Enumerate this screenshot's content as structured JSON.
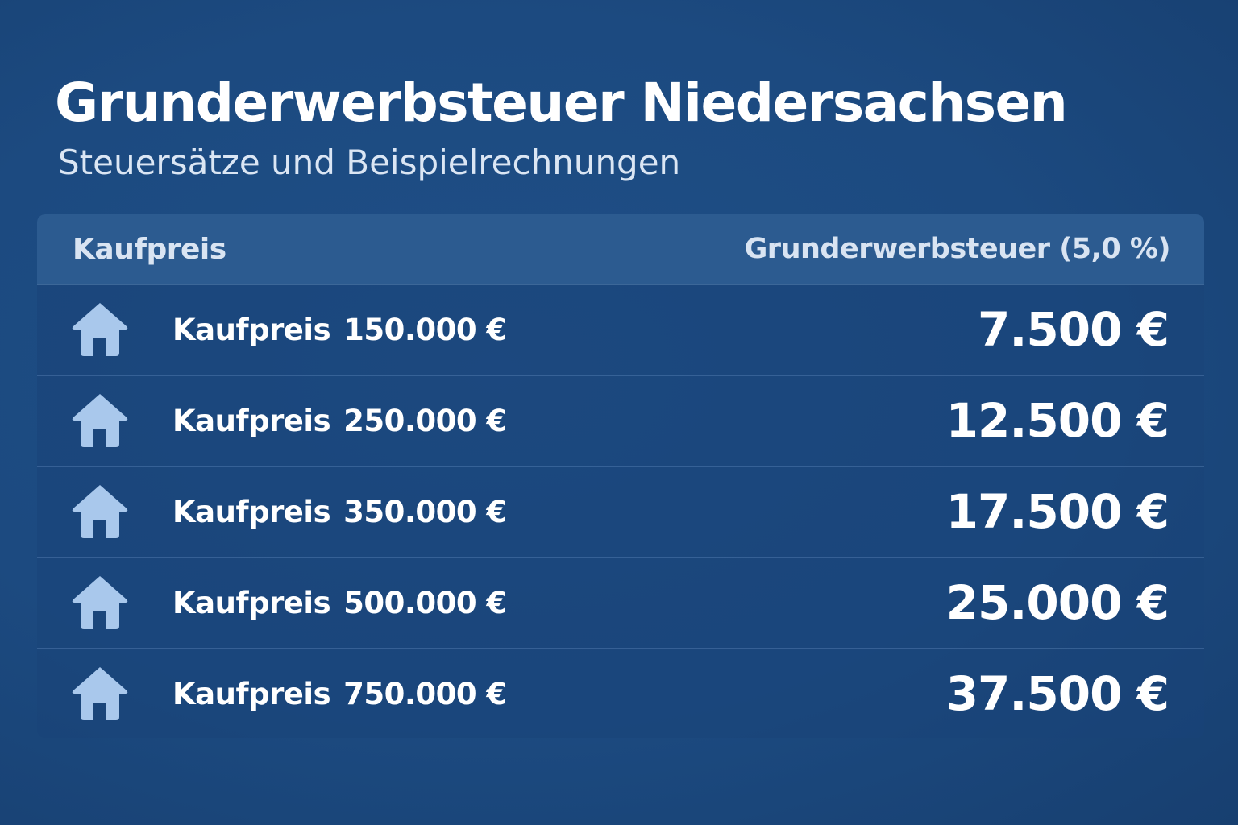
{
  "title": "Grunderwerbsteuer Niedersachsen",
  "subtitle": "Steuersätze und Beispielrechnungen",
  "table": {
    "header_left": "Kaufpreis",
    "header_right": "Grunderwerbsteuer (5,0 %)",
    "rows": [
      {
        "icon": "house-icon",
        "label": "Kaufpreis",
        "price": "150.000 €",
        "tax": "7.500 €"
      },
      {
        "icon": "house-icon",
        "label": "Kaufpreis",
        "price": "250.000 €",
        "tax": "12.500 €"
      },
      {
        "icon": "house-icon",
        "label": "Kaufpreis",
        "price": "350.000 €",
        "tax": "17.500 €"
      },
      {
        "icon": "house-icon",
        "label": "Kaufpreis",
        "price": "500.000 €",
        "tax": "25.000 €"
      },
      {
        "icon": "house-icon",
        "label": "Kaufpreis",
        "price": "750.000 €",
        "tax": "37.500 €"
      }
    ]
  },
  "colors": {
    "background": "#1c4a80",
    "header_bg": "#2c5b90",
    "icon": "#a9c8ec"
  }
}
